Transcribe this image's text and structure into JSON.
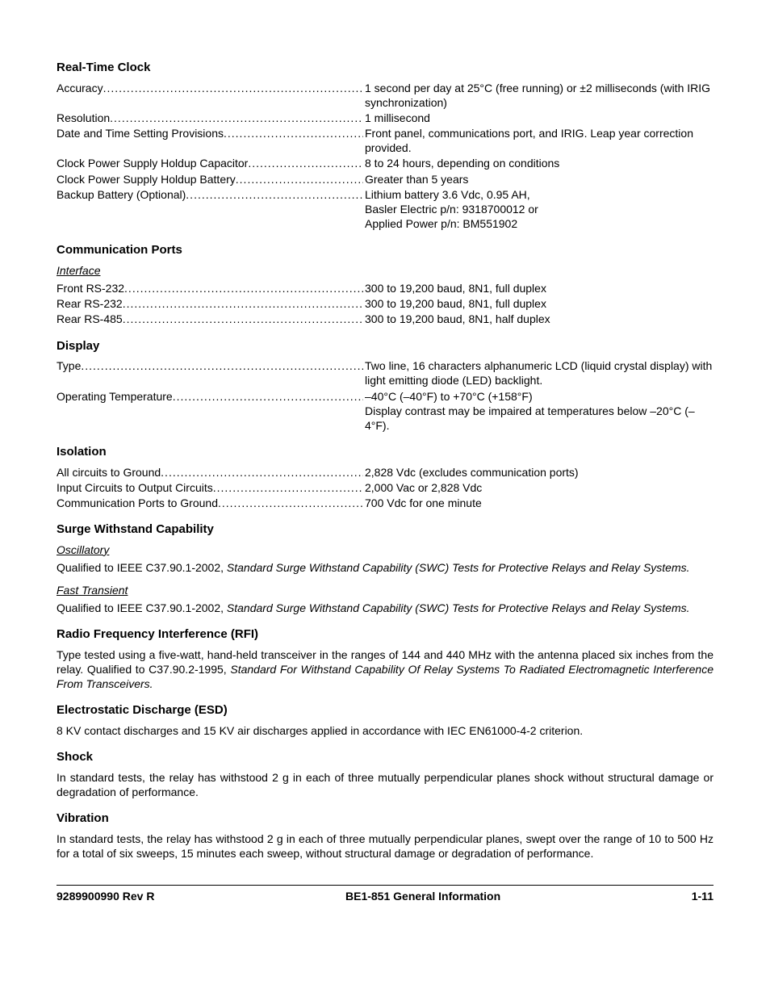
{
  "sections": {
    "rtc": {
      "title": "Real-Time Clock",
      "rows": [
        {
          "label": "Accuracy",
          "value": "1 second per day at 25°C (free running) or ±2 milliseconds (with IRIG synchronization)"
        },
        {
          "label": "Resolution",
          "value": "1 millisecond"
        },
        {
          "label": "Date and Time Setting Provisions",
          "value": "Front panel, communications port, and IRIG. Leap year correction provided."
        },
        {
          "label": "Clock Power Supply Holdup Capacitor",
          "value": "8 to 24 hours, depending on conditions"
        },
        {
          "label": "Clock Power Supply Holdup Battery",
          "value": "Greater than 5 years"
        },
        {
          "label": "Backup Battery (Optional)",
          "value": "Lithium battery 3.6 Vdc, 0.95 AH,\nBasler Electric p/n: 9318700012 or\nApplied Power p/n: BM551902"
        }
      ]
    },
    "comm": {
      "title": "Communication Ports",
      "sub": "Interface",
      "rows": [
        {
          "label": "Front RS-232",
          "value": "300 to 19,200 baud, 8N1, full duplex"
        },
        {
          "label": "Rear RS-232",
          "value": "300 to 19,200 baud, 8N1, full duplex"
        },
        {
          "label": "Rear RS-485",
          "value": "300 to 19,200 baud, 8N1, half duplex"
        }
      ]
    },
    "display": {
      "title": "Display",
      "rows": [
        {
          "label": "Type",
          "value": "Two line, 16 characters alphanumeric LCD (liquid crystal display) with light emitting diode (LED) backlight."
        },
        {
          "label": "Operating Temperature",
          "value": "–40°C (–40°F) to +70°C (+158°F)\nDisplay contrast may be impaired at temperatures below –20°C (–4°F)."
        }
      ]
    },
    "isolation": {
      "title": "Isolation",
      "rows": [
        {
          "label": "All circuits to Ground",
          "value": "2,828 Vdc (excludes communication ports)"
        },
        {
          "label": "Input Circuits to Output Circuits",
          "value": "2,000 Vac or 2,828 Vdc"
        },
        {
          "label": "Communication Ports to Ground",
          "value": "700 Vdc for one minute"
        }
      ]
    },
    "surge": {
      "title": "Surge Withstand Capability",
      "osc_sub": "Oscillatory",
      "osc_text_a": "Qualified to IEEE C37.90.1-2002, ",
      "osc_text_b": "Standard Surge Withstand Capability (SWC) Tests for Protective Relays and Relay Systems.",
      "ft_sub": "Fast Transient",
      "ft_text_a": "Qualified to IEEE C37.90.1-2002, ",
      "ft_text_b": "Standard Surge Withstand Capability (SWC) Tests for Protective Relays and Relay Systems."
    },
    "rfi": {
      "title": "Radio Frequency Interference (RFI)",
      "text_a": "Type tested using a five-watt, hand-held transceiver in the ranges of 144 and 440 MHz with the antenna placed six inches from the relay. Qualified to C37.90.2-1995, ",
      "text_b": "Standard For Withstand Capability Of Relay Systems To Radiated Electromagnetic Interference From Transceivers."
    },
    "esd": {
      "title": "Electrostatic Discharge (ESD)",
      "text": "8 KV contact discharges and 15 KV air discharges applied in accordance with IEC EN61000-4-2 criterion."
    },
    "shock": {
      "title": "Shock",
      "text": "In standard tests, the relay has withstood 2 g in each of three mutually perpendicular planes shock without structural damage or degradation of performance."
    },
    "vibration": {
      "title": "Vibration",
      "text": "In standard tests, the relay has withstood 2 g in each of three mutually perpendicular planes, swept over the range of 10 to 500 Hz for a total of six sweeps, 15 minutes each sweep, without structural damage or degradation of performance."
    }
  },
  "footer": {
    "left": "9289900990 Rev R",
    "center": "BE1-851 General Information",
    "right": "1-11"
  }
}
